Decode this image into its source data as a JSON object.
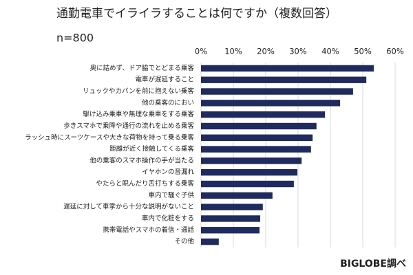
{
  "chart_data": {
    "type": "hbar",
    "title": "通勤電車でイライラすることは何ですか（複数回答）",
    "subtitle": "n=800",
    "source": "BIGLOBE調べ",
    "categories": [
      "奥に詰めず、ドア脇でとどまる乗客",
      "電車が遅延すること",
      "リュックやカバンを前に抱えない乗客",
      "他の乗客のにおい",
      "駆け込み乗車や無理な乗車をする乗客",
      "歩きスマホで乗降や通行の流れを止める乗客",
      "ラッシュ時にスーツケースや大きな荷物を持って乗る乗客",
      "距離が近く接触してくる乗客",
      "他の乗客のスマホ操作の手が当たる",
      "イヤホンの音漏れ",
      "やたらと睨んだり舌打ちする乗客",
      "車内で騒ぐ子供",
      "遅延に対して車掌から十分な説明がないこと",
      "車内で化粧をする",
      "携帯電話やスマホの着信・通話",
      "その他"
    ],
    "values": [
      53.4,
      51.1,
      47.0,
      43.0,
      38.3,
      35.7,
      34.5,
      34.0,
      31.1,
      29.8,
      28.7,
      22.1,
      19.1,
      18.3,
      18.1,
      5.5
    ],
    "color": "#1f2a5e",
    "xlim": [
      0,
      60
    ],
    "xticks": [
      {
        "value": 0,
        "label": "0%"
      },
      {
        "value": 10,
        "label": "10%"
      },
      {
        "value": 20,
        "label": "20%"
      },
      {
        "value": 30,
        "label": "30%"
      },
      {
        "value": 40,
        "label": "40%"
      },
      {
        "value": 50,
        "label": "50%"
      },
      {
        "value": 60,
        "label": "60%"
      }
    ],
    "grid": true
  }
}
